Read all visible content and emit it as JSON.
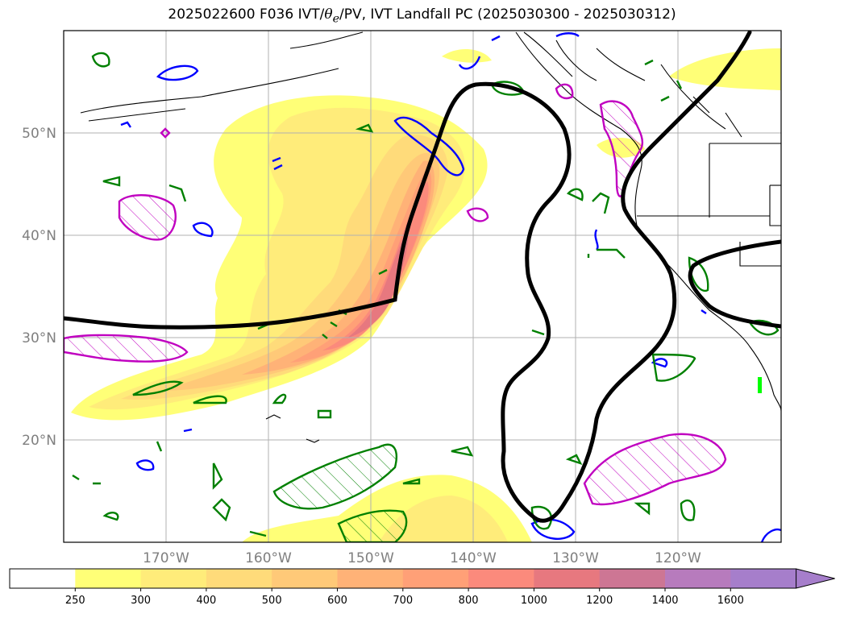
{
  "title": {
    "prefix": "2025022600 F036 IVT/",
    "theta": "θ",
    "theta_sub": "e",
    "suffix": "/PV, IVT Landfall PC (2025030300 - 2025030312)"
  },
  "lat_labels": [
    "50°N",
    "40°N",
    "30°N",
    "20°N"
  ],
  "lon_labels": [
    "170°W",
    "160°W",
    "150°W",
    "140°W",
    "130°W",
    "120°W"
  ],
  "colorbar": {
    "levels": [
      "250",
      "300",
      "400",
      "500",
      "600",
      "700",
      "800",
      "1000",
      "1200",
      "1400",
      "1600"
    ],
    "colors": [
      "#ffffff",
      "#ffff77",
      "#ffec7a",
      "#ffdb7a",
      "#ffc978",
      "#ffb277",
      "#ffa077",
      "#fb8a7c",
      "#e7787f",
      "#cd7694",
      "#b77bbd",
      "#a67ecb"
    ]
  },
  "colors": {
    "ivt_fill_base": "#ffff77",
    "thick_contour": "#000000",
    "green_contour": "#008000",
    "blue_contour": "#0000ff",
    "magenta_contour": "#c000c0",
    "coastline": "#000000"
  }
}
